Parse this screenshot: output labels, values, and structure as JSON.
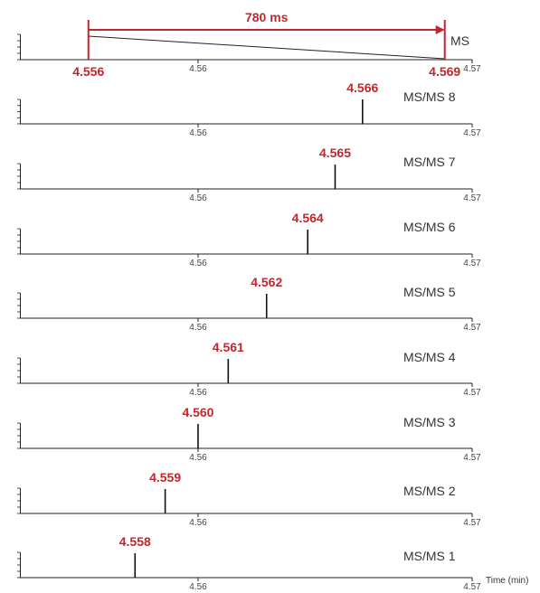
{
  "chart_data": {
    "type": "line",
    "xlim": [
      4.5535,
      4.57
    ],
    "xticks": [
      4.56,
      4.57
    ],
    "x_tick_labels": [
      "4.56",
      "4.57"
    ],
    "xlabel": "Time (min)",
    "accent_color": "#c0272d",
    "interval": {
      "label": "780 ms",
      "start": 4.556,
      "end": 4.569,
      "start_label": "4.556",
      "end_label": "4.569"
    },
    "panels": [
      {
        "label": "MS",
        "type": "ramp",
        "start": 4.556,
        "end": 4.569
      },
      {
        "label": "MS/MS 8",
        "peak": 4.566,
        "peak_label": "4.566"
      },
      {
        "label": "MS/MS 7",
        "peak": 4.565,
        "peak_label": "4.565"
      },
      {
        "label": "MS/MS 6",
        "peak": 4.564,
        "peak_label": "4.564"
      },
      {
        "label": "MS/MS 5",
        "peak": 4.5625,
        "peak_label": "4.562"
      },
      {
        "label": "MS/MS 4",
        "peak": 4.5611,
        "peak_label": "4.561"
      },
      {
        "label": "MS/MS 3",
        "peak": 4.56,
        "peak_label": "4.560"
      },
      {
        "label": "MS/MS 2",
        "peak": 4.5588,
        "peak_label": "4.559"
      },
      {
        "label": "MS/MS 1",
        "peak": 4.5577,
        "peak_label": "4.558"
      }
    ]
  }
}
